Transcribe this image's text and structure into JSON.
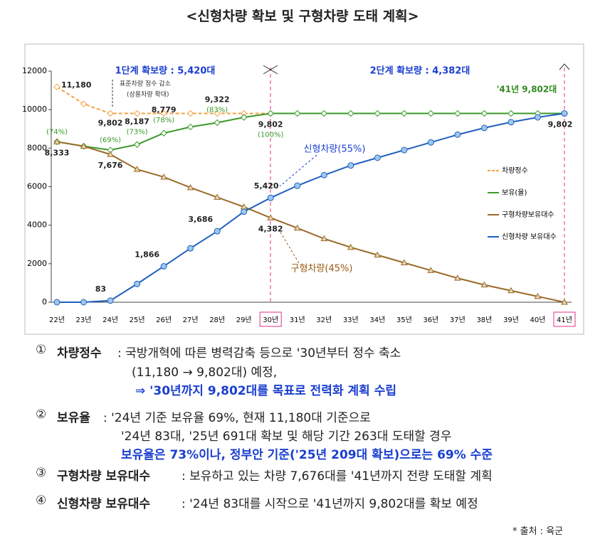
{
  "header": {
    "title": "<신형차량 확보 및 구형차량 도태 계획>"
  },
  "chart_data": {
    "type": "line",
    "categories": [
      "22년",
      "23년",
      "24년",
      "25년",
      "26년",
      "27년",
      "28년",
      "29년",
      "30년",
      "31년",
      "32년",
      "33년",
      "34년",
      "35년",
      "36년",
      "37년",
      "38년",
      "39년",
      "40년",
      "41년"
    ],
    "ylim": [
      0,
      12000
    ],
    "yticks": [
      0,
      2000,
      4000,
      6000,
      8000,
      10000,
      12000
    ],
    "legend": "right",
    "series": [
      {
        "name": "차량정수",
        "color": "#f5a142",
        "dash": true,
        "marker": "diamond",
        "values": [
          11180,
          10300,
          9802,
          9802,
          9802,
          9802,
          9802,
          9802,
          9802,
          null,
          null,
          null,
          null,
          null,
          null,
          null,
          null,
          null,
          null,
          null
        ],
        "value_labels": [
          "11,180",
          null,
          "9,802",
          null,
          null,
          null,
          null,
          null,
          null,
          null,
          null,
          null,
          null,
          null,
          null,
          null,
          null,
          null,
          null,
          null
        ]
      },
      {
        "name": "보유(율)",
        "color": "#3a9a2a",
        "dash": false,
        "marker": "diamond",
        "values": [
          8333,
          8100,
          7900,
          8187,
          8779,
          9100,
          9322,
          9600,
          9802,
          9802,
          9802,
          9802,
          9802,
          9802,
          9802,
          9802,
          9802,
          9802,
          9802,
          9802
        ],
        "value_labels": [
          null,
          null,
          null,
          "8,187",
          "8,779",
          null,
          "9,322",
          null,
          "9,802",
          null,
          null,
          null,
          null,
          null,
          null,
          null,
          null,
          null,
          null,
          null
        ],
        "pct_labels": [
          "(74%)",
          null,
          "(69%)",
          "(73%)",
          "(78%)",
          null,
          "(83%)",
          null,
          "(100%)",
          null,
          null,
          null,
          null,
          null,
          null,
          null,
          null,
          null,
          null,
          null
        ]
      },
      {
        "name": "구형차량보유대수",
        "color": "#9a6a2a",
        "dash": false,
        "marker": "triangle",
        "values": [
          8333,
          8100,
          7676,
          6900,
          6500,
          5950,
          5450,
          4950,
          4382,
          3850,
          3300,
          2850,
          2450,
          2050,
          1650,
          1250,
          900,
          600,
          300,
          0
        ],
        "value_labels": [
          "8,333",
          null,
          "7,676",
          null,
          null,
          null,
          null,
          null,
          "4,382",
          null,
          null,
          null,
          null,
          null,
          null,
          null,
          null,
          null,
          null,
          null
        ]
      },
      {
        "name": "신형차량 보유대수",
        "color": "#1f5fbf",
        "dash": false,
        "marker": "circle",
        "values": [
          0,
          0,
          83,
          950,
          1866,
          2800,
          3686,
          4700,
          5420,
          6050,
          6600,
          7100,
          7500,
          7900,
          8300,
          8700,
          9050,
          9350,
          9600,
          9802
        ],
        "value_labels": [
          null,
          null,
          "83",
          null,
          "1,866",
          null,
          "3,686",
          null,
          "5,420",
          null,
          null,
          null,
          null,
          null,
          null,
          null,
          null,
          null,
          null,
          "9,802"
        ]
      }
    ],
    "annotations": {
      "phase1": "1단계 확보량 : 5,420대",
      "phase2": "2단계 확보량 : 4,382대",
      "final": "'41년 9,802대",
      "reduce1": "표준차량 정수 감소",
      "reduce2": "(상용차량 확대)",
      "new_share": "신형차량(55%)",
      "old_share": "구형차량(45%)"
    }
  },
  "notes": [
    {
      "num": "①",
      "label": "차량정수",
      "lines": [
        ": 국방개혁에 따른 병력감축 등으로 '30년부터 정수 축소",
        "(11,180 → 9,802대) 예정,",
        "⇒ '30년까지 9,802대를 목표로 전력화 계획 수립"
      ]
    },
    {
      "num": "②",
      "label": "보유율",
      "lines": [
        ": '24년 기준 보유율 69%, 현재 11,180대 기준으로",
        "'24년 83대, '25년 691대 확보 및 해당 기간 263대 도태할 경우",
        "보유율은 73%이나, 정부안 기준('25년 209대 확보)으로는 69% 수준"
      ]
    },
    {
      "num": "③",
      "label": "구형차량 보유대수",
      "lines": [
        ": 보유하고 있는 차량 7,676대를 '41년까지 전량 도태할 계획"
      ]
    },
    {
      "num": "④",
      "label": "신형차량 보유대수",
      "lines": [
        ": '24년 83대를 시작으로 '41년까지 9,802대를 확보 예정"
      ]
    }
  ],
  "source": "* 출처 : 육군"
}
